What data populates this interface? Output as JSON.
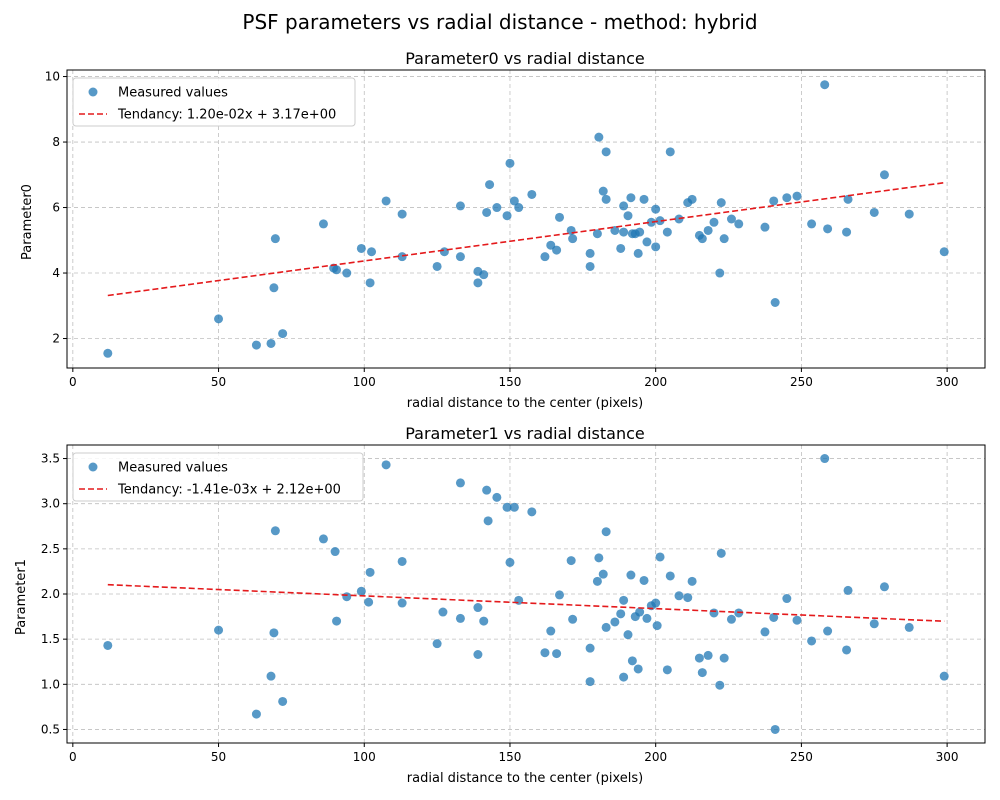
{
  "figure": {
    "title": "PSF parameters vs radial distance - method: hybrid"
  },
  "colors": {
    "points": "#1f77b4",
    "trend": "#e41a1c",
    "grid": "#b0b0b0"
  },
  "chart_data": [
    {
      "type": "scatter",
      "title": "Parameter0 vs radial distance",
      "xlabel": "radial distance to the center (pixels)",
      "ylabel": "Parameter0",
      "xlim": [
        -2,
        313
      ],
      "ylim": [
        1.1,
        10.2
      ],
      "xticks": [
        0,
        50,
        100,
        150,
        200,
        250,
        300
      ],
      "yticks": [
        2,
        4,
        6,
        8,
        10
      ],
      "grid": true,
      "legend_position": "top-left",
      "series": [
        {
          "name": "Measured values",
          "kind": "scatter",
          "points": [
            [
              12,
              1.55
            ],
            [
              50,
              2.6
            ],
            [
              63,
              1.8
            ],
            [
              68,
              1.85
            ],
            [
              69,
              3.55
            ],
            [
              69.5,
              5.05
            ],
            [
              72,
              2.15
            ],
            [
              86,
              5.5
            ],
            [
              89.5,
              4.15
            ],
            [
              90.5,
              4.1
            ],
            [
              94,
              4.0
            ],
            [
              99,
              4.75
            ],
            [
              102,
              3.7
            ],
            [
              102.5,
              4.65
            ],
            [
              107.5,
              6.2
            ],
            [
              113,
              4.5
            ],
            [
              113,
              5.8
            ],
            [
              125,
              4.2
            ],
            [
              127.5,
              4.65
            ],
            [
              133,
              6.05
            ],
            [
              133,
              4.5
            ],
            [
              139,
              4.05
            ],
            [
              139,
              3.7
            ],
            [
              141,
              3.95
            ],
            [
              142,
              5.85
            ],
            [
              143,
              6.7
            ],
            [
              145.5,
              6.0
            ],
            [
              149,
              5.75
            ],
            [
              150,
              7.35
            ],
            [
              151.5,
              6.2
            ],
            [
              153,
              6.0
            ],
            [
              157.5,
              6.4
            ],
            [
              162,
              4.5
            ],
            [
              164,
              4.85
            ],
            [
              166,
              4.7
            ],
            [
              167,
              5.7
            ],
            [
              171,
              5.3
            ],
            [
              171.5,
              5.05
            ],
            [
              177.5,
              4.6
            ],
            [
              177.5,
              4.2
            ],
            [
              180,
              5.2
            ],
            [
              180.5,
              8.15
            ],
            [
              182,
              6.5
            ],
            [
              183,
              7.7
            ],
            [
              183,
              6.25
            ],
            [
              186,
              5.3
            ],
            [
              188,
              4.75
            ],
            [
              189,
              5.25
            ],
            [
              189,
              6.05
            ],
            [
              190.5,
              5.75
            ],
            [
              191.5,
              6.3
            ],
            [
              192,
              5.2
            ],
            [
              193,
              5.2
            ],
            [
              194,
              4.6
            ],
            [
              194.5,
              5.25
            ],
            [
              196,
              6.25
            ],
            [
              197,
              4.95
            ],
            [
              198.5,
              5.55
            ],
            [
              200,
              5.95
            ],
            [
              200,
              4.8
            ],
            [
              201.5,
              5.6
            ],
            [
              204,
              5.25
            ],
            [
              205,
              7.7
            ],
            [
              208,
              5.65
            ],
            [
              211,
              6.15
            ],
            [
              212.5,
              6.25
            ],
            [
              215,
              5.15
            ],
            [
              216,
              5.05
            ],
            [
              218,
              5.3
            ],
            [
              220,
              5.55
            ],
            [
              222,
              4.0
            ],
            [
              222.5,
              6.15
            ],
            [
              223.5,
              5.05
            ],
            [
              226,
              5.65
            ],
            [
              228.5,
              5.5
            ],
            [
              237.5,
              5.4
            ],
            [
              240.5,
              6.2
            ],
            [
              241,
              3.1
            ],
            [
              245,
              6.3
            ],
            [
              248.5,
              6.35
            ],
            [
              253.5,
              5.5
            ],
            [
              258,
              9.75
            ],
            [
              259,
              5.35
            ],
            [
              265.5,
              5.25
            ],
            [
              266,
              6.25
            ],
            [
              275,
              5.85
            ],
            [
              278.5,
              7.0
            ],
            [
              287,
              5.8
            ],
            [
              299,
              4.65
            ]
          ]
        },
        {
          "name": "Tendancy: 1.20e-02x + 3.17e+00",
          "kind": "line",
          "slope": 0.012,
          "intercept": 3.17,
          "x_range": [
            12,
            299
          ]
        }
      ]
    },
    {
      "type": "scatter",
      "title": "Parameter1 vs radial distance",
      "xlabel": "radial distance to the center (pixels)",
      "ylabel": "Parameter1",
      "xlim": [
        -2,
        313
      ],
      "ylim": [
        0.35,
        3.65
      ],
      "xticks": [
        0,
        50,
        100,
        150,
        200,
        250,
        300
      ],
      "yticks": [
        0.5,
        1.0,
        1.5,
        2.0,
        2.5,
        3.0,
        3.5
      ],
      "grid": true,
      "legend_position": "top-left",
      "series": [
        {
          "name": "Measured values",
          "kind": "scatter",
          "points": [
            [
              12,
              1.43
            ],
            [
              50,
              1.6
            ],
            [
              63,
              0.67
            ],
            [
              68,
              1.09
            ],
            [
              69,
              1.57
            ],
            [
              69.5,
              2.7
            ],
            [
              72,
              0.81
            ],
            [
              86,
              2.61
            ],
            [
              90,
              2.47
            ],
            [
              90.5,
              1.7
            ],
            [
              94,
              1.97
            ],
            [
              99,
              2.03
            ],
            [
              101.5,
              1.91
            ],
            [
              102,
              2.24
            ],
            [
              107.5,
              3.43
            ],
            [
              113,
              2.36
            ],
            [
              113,
              1.9
            ],
            [
              125,
              1.45
            ],
            [
              127,
              1.8
            ],
            [
              133,
              3.23
            ],
            [
              133,
              1.73
            ],
            [
              139,
              1.85
            ],
            [
              139,
              1.33
            ],
            [
              141,
              1.7
            ],
            [
              142,
              3.15
            ],
            [
              142.5,
              2.81
            ],
            [
              145.5,
              3.07
            ],
            [
              149,
              2.96
            ],
            [
              150,
              2.35
            ],
            [
              151.5,
              2.96
            ],
            [
              153,
              1.93
            ],
            [
              157.5,
              2.91
            ],
            [
              162,
              1.35
            ],
            [
              164,
              1.59
            ],
            [
              166,
              1.34
            ],
            [
              167,
              1.99
            ],
            [
              171,
              2.37
            ],
            [
              171.5,
              1.72
            ],
            [
              177.5,
              1.4
            ],
            [
              177.5,
              1.03
            ],
            [
              180,
              2.14
            ],
            [
              180.5,
              2.4
            ],
            [
              182,
              2.22
            ],
            [
              183,
              2.69
            ],
            [
              183,
              1.63
            ],
            [
              186,
              1.69
            ],
            [
              188,
              1.78
            ],
            [
              189,
              1.08
            ],
            [
              189,
              1.93
            ],
            [
              190.5,
              1.55
            ],
            [
              191.5,
              2.21
            ],
            [
              192,
              1.26
            ],
            [
              193,
              1.75
            ],
            [
              194,
              1.17
            ],
            [
              194.5,
              1.8
            ],
            [
              196,
              2.15
            ],
            [
              197,
              1.73
            ],
            [
              198.5,
              1.87
            ],
            [
              200,
              1.9
            ],
            [
              200.5,
              1.65
            ],
            [
              201.5,
              2.41
            ],
            [
              204,
              1.16
            ],
            [
              205,
              2.2
            ],
            [
              208,
              1.98
            ],
            [
              211,
              1.96
            ],
            [
              212.5,
              2.14
            ],
            [
              215,
              1.29
            ],
            [
              216,
              1.13
            ],
            [
              218,
              1.32
            ],
            [
              220,
              1.79
            ],
            [
              222,
              0.99
            ],
            [
              222.5,
              2.45
            ],
            [
              223.5,
              1.29
            ],
            [
              226,
              1.72
            ],
            [
              228.5,
              1.79
            ],
            [
              237.5,
              1.58
            ],
            [
              240.5,
              1.74
            ],
            [
              241,
              0.5
            ],
            [
              245,
              1.95
            ],
            [
              248.5,
              1.71
            ],
            [
              253.5,
              1.48
            ],
            [
              258,
              3.5
            ],
            [
              259,
              1.59
            ],
            [
              265.5,
              1.38
            ],
            [
              266,
              2.04
            ],
            [
              275,
              1.67
            ],
            [
              278.5,
              2.08
            ],
            [
              287,
              1.63
            ],
            [
              299,
              1.09
            ]
          ]
        },
        {
          "name": "Tendancy: -1.41e-03x + 2.12e+00",
          "kind": "line",
          "slope": -0.00141,
          "intercept": 2.12,
          "x_range": [
            12,
            299
          ]
        }
      ]
    }
  ]
}
